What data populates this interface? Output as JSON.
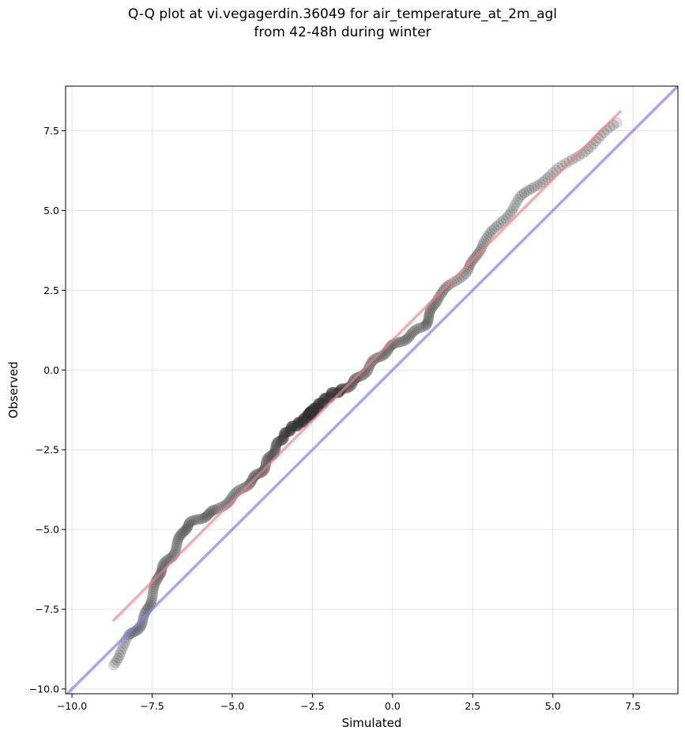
{
  "chart_data": {
    "type": "scatter",
    "title_line1": "Q-Q plot at vi.vegagerdin.36049 for air_temperature_at_2m_agl",
    "title_line2": "from 42-48h during winter",
    "xlabel": "Simulated",
    "ylabel": "Observed",
    "xlim": [
      -10.2,
      8.9
    ],
    "ylim": [
      -10.15,
      8.9
    ],
    "xticks": [
      -10.0,
      -7.5,
      -5.0,
      -2.5,
      0.0,
      2.5,
      5.0,
      7.5
    ],
    "yticks": [
      -10.0,
      -7.5,
      -5.0,
      -2.5,
      0.0,
      2.5,
      5.0,
      7.5
    ],
    "xtick_labels": [
      "−10.0",
      "−7.5",
      "−5.0",
      "−2.5",
      "0.0",
      "2.5",
      "5.0",
      "7.5"
    ],
    "ytick_labels": [
      "−10.0",
      "−7.5",
      "−5.0",
      "−2.5",
      "0.0",
      "2.5",
      "5.0",
      "7.5"
    ],
    "grid": true,
    "colors": {
      "points": "#333333",
      "fit_line": "#f08080",
      "identity_line": "#8080f0"
    },
    "identity_line": {
      "x": [
        -10.2,
        8.9
      ],
      "y": [
        -10.2,
        8.9
      ]
    },
    "fit_line": {
      "x": [
        -8.7,
        7.1
      ],
      "y": [
        -7.85,
        8.1
      ]
    },
    "quantile_curve": [
      [
        -8.7,
        -9.25
      ],
      [
        -8.5,
        -8.8
      ],
      [
        -8.2,
        -8.35
      ],
      [
        -8.0,
        -8.15
      ],
      [
        -7.8,
        -7.9
      ],
      [
        -7.65,
        -7.55
      ],
      [
        -7.55,
        -7.2
      ],
      [
        -7.4,
        -6.8
      ],
      [
        -7.3,
        -6.4
      ],
      [
        -7.15,
        -6.15
      ],
      [
        -6.9,
        -5.85
      ],
      [
        -6.7,
        -5.45
      ],
      [
        -6.55,
        -5.05
      ],
      [
        -6.3,
        -4.8
      ],
      [
        -5.9,
        -4.6
      ],
      [
        -5.5,
        -4.4
      ],
      [
        -5.0,
        -4.0
      ],
      [
        -4.5,
        -3.55
      ],
      [
        -4.1,
        -3.2
      ],
      [
        -3.8,
        -2.7
      ],
      [
        -3.5,
        -2.2
      ],
      [
        -3.2,
        -1.85
      ],
      [
        -2.8,
        -1.6
      ],
      [
        -2.3,
        -1.1
      ],
      [
        -1.9,
        -0.75
      ],
      [
        -1.5,
        -0.6
      ],
      [
        -1.0,
        -0.2
      ],
      [
        -0.5,
        0.35
      ],
      [
        0.0,
        0.75
      ],
      [
        0.5,
        1.05
      ],
      [
        1.0,
        1.4
      ],
      [
        1.2,
        1.8
      ],
      [
        1.4,
        2.3
      ],
      [
        1.8,
        2.65
      ],
      [
        2.3,
        3.1
      ],
      [
        2.6,
        3.5
      ],
      [
        2.8,
        4.0
      ],
      [
        3.2,
        4.4
      ],
      [
        3.6,
        4.9
      ],
      [
        4.0,
        5.4
      ],
      [
        4.4,
        5.75
      ],
      [
        4.9,
        6.1
      ],
      [
        5.5,
        6.5
      ],
      [
        6.0,
        6.9
      ],
      [
        6.5,
        7.3
      ],
      [
        7.0,
        7.75
      ]
    ],
    "point_count": 520,
    "point_spacing": 0.034
  }
}
